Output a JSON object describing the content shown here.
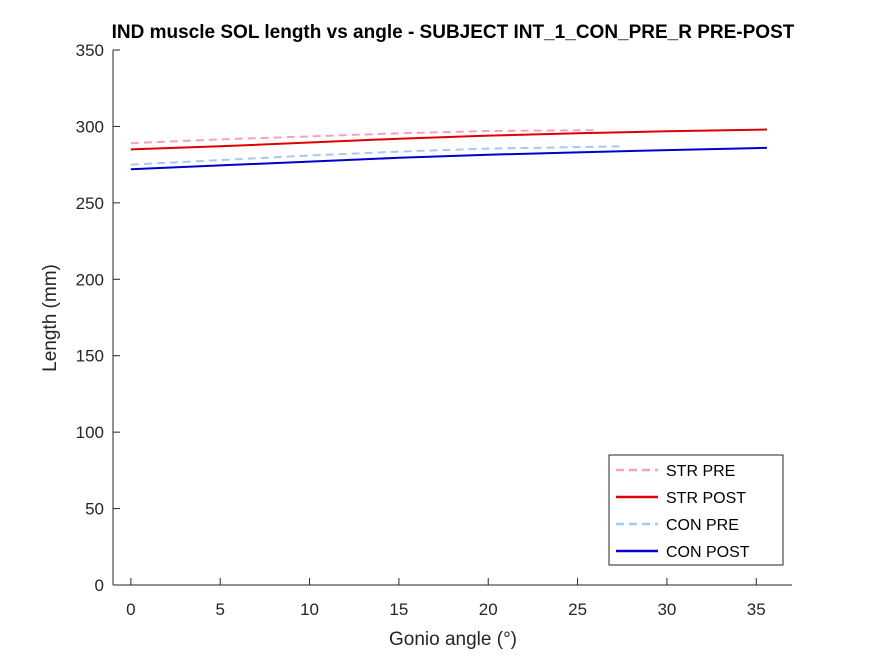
{
  "chart_data": {
    "type": "line",
    "title": "IND muscle SOL length vs angle - SUBJECT INT_1_CON_PRE_R PRE-POST",
    "xlabel": "Gonio angle (°)",
    "ylabel": "Length (mm)",
    "xlim": [
      -1,
      37
    ],
    "ylim": [
      0,
      350
    ],
    "xticks": [
      0,
      5,
      10,
      15,
      20,
      25,
      30,
      35
    ],
    "yticks": [
      0,
      50,
      100,
      150,
      200,
      250,
      300,
      350
    ],
    "grid": false,
    "legend_position": "bottom-right",
    "series": [
      {
        "name": "STR PRE",
        "color": "#f4a3bf",
        "dash": "dashed",
        "x": [
          0,
          5,
          10,
          15,
          20,
          25,
          26
        ],
        "y": [
          289,
          291.5,
          293.5,
          295.5,
          297,
          297.5,
          297.5
        ]
      },
      {
        "name": "STR POST",
        "color": "#e00000",
        "dash": "solid",
        "x": [
          0,
          5,
          10,
          15,
          20,
          25,
          30,
          35,
          35.6
        ],
        "y": [
          285,
          287,
          289.5,
          292,
          294,
          295.5,
          296.8,
          297.8,
          298
        ]
      },
      {
        "name": "CON PRE",
        "color": "#a8c8f0",
        "dash": "dashed",
        "x": [
          0,
          5,
          10,
          15,
          20,
          25,
          27.5
        ],
        "y": [
          275,
          278,
          281,
          283.5,
          285.5,
          286.5,
          287
        ]
      },
      {
        "name": "CON POST",
        "color": "#0000cc",
        "dash": "solid",
        "x": [
          0,
          5,
          10,
          15,
          20,
          25,
          30,
          35,
          35.6
        ],
        "y": [
          272,
          274.5,
          277,
          279.5,
          281.5,
          283,
          284.5,
          285.8,
          286
        ]
      }
    ]
  }
}
